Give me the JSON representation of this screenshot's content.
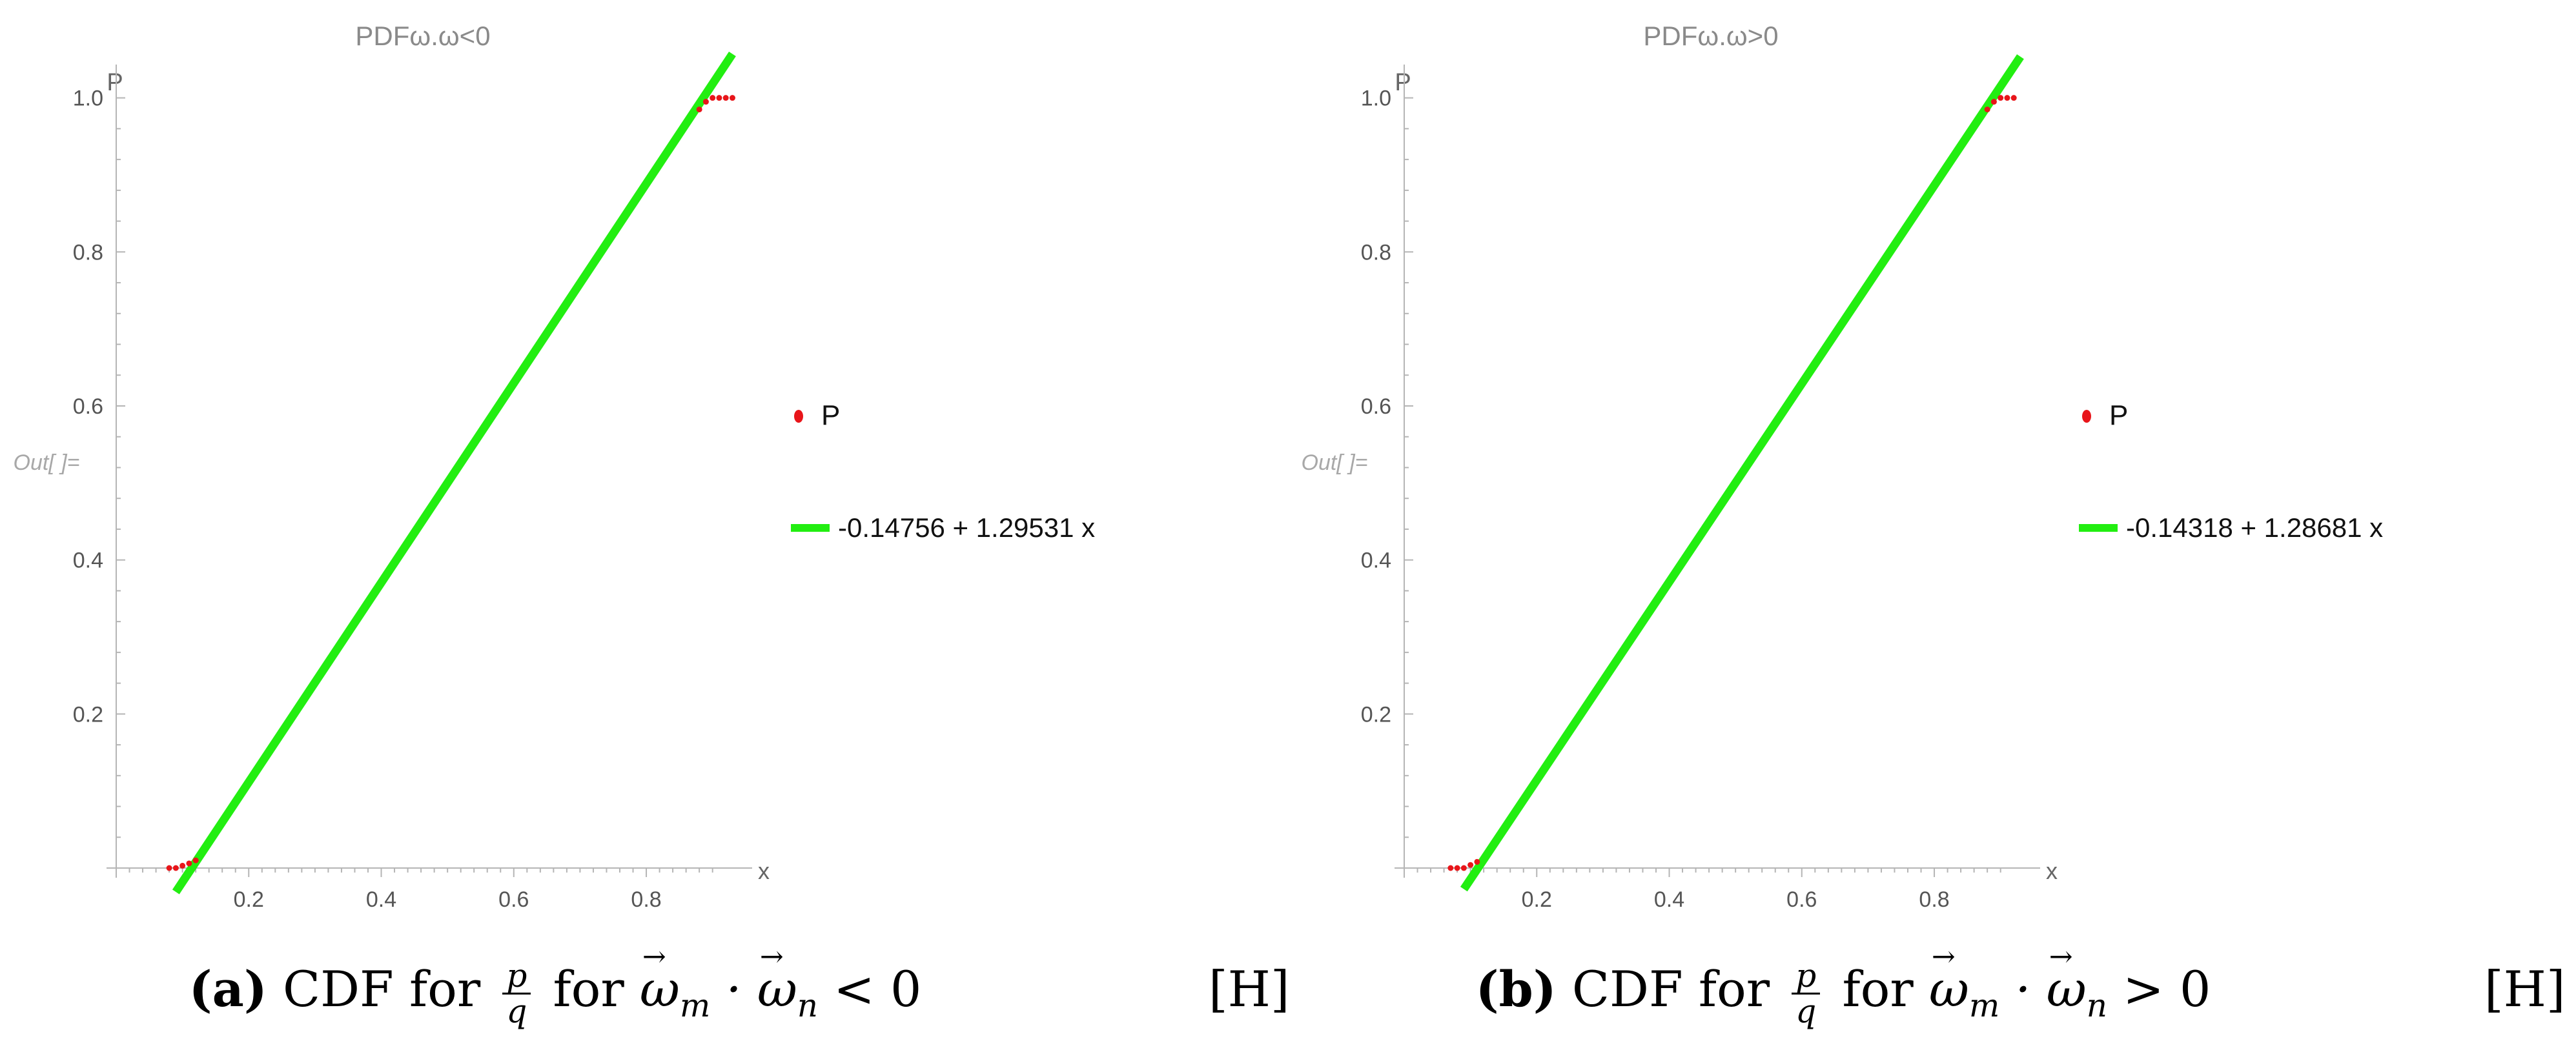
{
  "chart_data": [
    {
      "type": "scatter",
      "title": "PDFω.ω<0",
      "ylabel": "P",
      "xlabel": "x",
      "xlim": [
        0.0,
        0.95
      ],
      "ylim": [
        0.0,
        1.05
      ],
      "x_ticks": [
        "0.2",
        "0.4",
        "0.6",
        "0.8"
      ],
      "y_ticks": [
        "0.2",
        "0.4",
        "0.6",
        "0.8",
        "1.0"
      ],
      "out_label": "Out[ ]=",
      "legend_position": "right",
      "series": [
        {
          "name": "P",
          "kind": "points",
          "color": "#e8151a",
          "x": [
            0.08,
            0.09,
            0.1,
            0.11,
            0.12,
            0.88,
            0.89,
            0.9,
            0.91,
            0.92,
            0.93
          ],
          "y": [
            0.0,
            0.0,
            0.003,
            0.006,
            0.01,
            0.985,
            0.995,
            1.0,
            1.0,
            1.0,
            1.0
          ]
        },
        {
          "name": "-0.14756 + 1.29531 x",
          "kind": "line",
          "color": "#22ee11",
          "intercept": -0.14756,
          "slope": 1.29531,
          "x_range": [
            0.09,
            0.93
          ]
        }
      ],
      "caption": {
        "tag": "(a)",
        "text_before": "CDF for",
        "frac_num": "p",
        "frac_den": "q",
        "text_mid": "for",
        "math": "ω",
        "relation": "< 0",
        "h_label": "[H]"
      }
    },
    {
      "type": "scatter",
      "title": "PDFω.ω>0",
      "ylabel": "P",
      "xlabel": "x",
      "xlim": [
        0.0,
        0.95
      ],
      "ylim": [
        0.0,
        1.05
      ],
      "x_ticks": [
        "0.2",
        "0.4",
        "0.6",
        "0.8"
      ],
      "y_ticks": [
        "0.2",
        "0.4",
        "0.6",
        "0.8",
        "1.0"
      ],
      "out_label": "Out[ ]=",
      "legend_position": "right",
      "series": [
        {
          "name": "P",
          "kind": "points",
          "color": "#e8151a",
          "x": [
            0.07,
            0.08,
            0.09,
            0.1,
            0.11,
            0.88,
            0.89,
            0.9,
            0.91,
            0.92
          ],
          "y": [
            0.0,
            0.0,
            0.0,
            0.004,
            0.008,
            0.985,
            0.995,
            1.0,
            1.0,
            1.0
          ]
        },
        {
          "name": "-0.14318 + 1.28681 x",
          "kind": "line",
          "color": "#22ee11",
          "intercept": -0.14318,
          "slope": 1.28681,
          "x_range": [
            0.09,
            0.93
          ]
        }
      ],
      "caption": {
        "tag": "(b)",
        "text_before": "CDF for",
        "frac_num": "p",
        "frac_den": "q",
        "text_mid": "for",
        "math": "ω",
        "relation": "> 0",
        "h_label": "[H]"
      }
    }
  ]
}
